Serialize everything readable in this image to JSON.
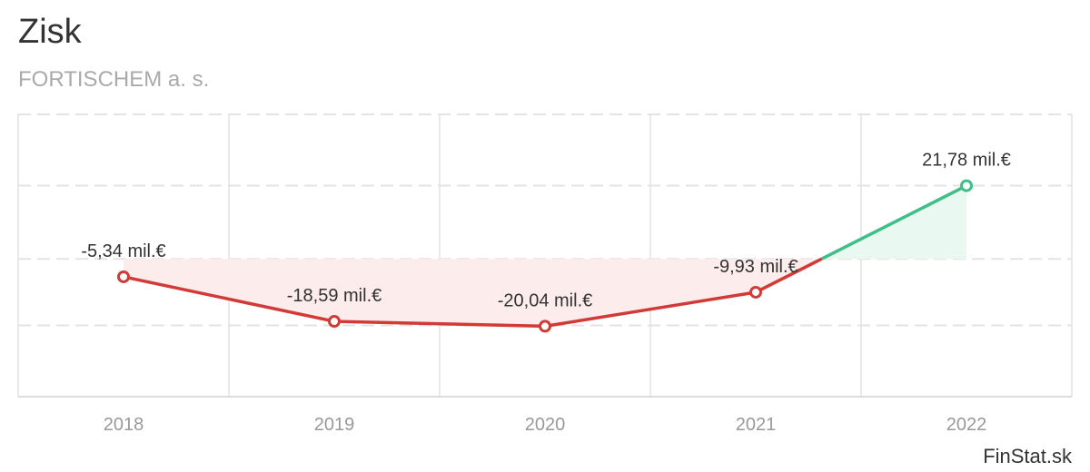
{
  "header": {
    "title": "Zisk",
    "subtitle": "FORTISCHEM a. s."
  },
  "branding": {
    "text": "FinStat.sk"
  },
  "chart_data": {
    "type": "line",
    "title": "Zisk",
    "subtitle": "FORTISCHEM a. s.",
    "xlabel": "",
    "ylabel": "",
    "categories": [
      "2018",
      "2019",
      "2020",
      "2021",
      "2022"
    ],
    "series": [
      {
        "values": [
          -5.34,
          -18.59,
          -20.04,
          -9.93,
          21.78
        ],
        "labels": [
          "-5,34 mil.€",
          "-18,59 mil.€",
          "-20,04 mil.€",
          "-9,93 mil.€",
          "21,78 mil.€"
        ]
      }
    ],
    "ylim": [
      -41,
      43
    ],
    "grid": true,
    "colors": {
      "negative": "#d13a36",
      "positive": "#3dbf85",
      "negative_fill": "#fcecec",
      "positive_fill": "#eaf8f2",
      "grid": "#e3e3e3"
    }
  }
}
